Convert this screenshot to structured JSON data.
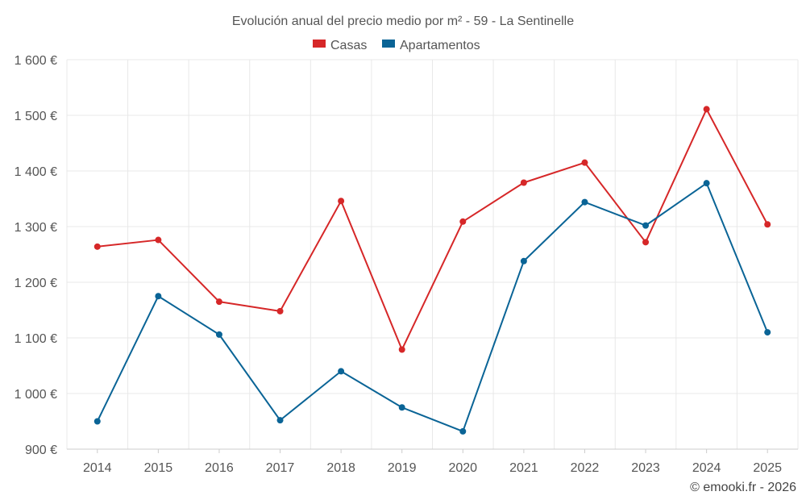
{
  "chart_data": {
    "type": "line",
    "title": "Evolución anual del precio medio por m² - 59 - La Sentinelle",
    "categories": [
      "2014",
      "2015",
      "2016",
      "2017",
      "2018",
      "2019",
      "2020",
      "2021",
      "2022",
      "2023",
      "2024",
      "2025"
    ],
    "series": [
      {
        "name": "Casas",
        "color": "#d62728",
        "values": [
          1264,
          1276,
          1165,
          1148,
          1346,
          1079,
          1309,
          1379,
          1415,
          1272,
          1511,
          1304
        ]
      },
      {
        "name": "Apartamentos",
        "color": "#0a6496",
        "values": [
          950,
          1175,
          1106,
          952,
          1040,
          975,
          932,
          1238,
          1344,
          1302,
          1378,
          1110
        ]
      }
    ],
    "yticks": [
      900,
      1000,
      1100,
      1200,
      1300,
      1400,
      1500,
      1600
    ],
    "ytick_labels": [
      "900 €",
      "1 000 €",
      "1 100 €",
      "1 200 €",
      "1 300 €",
      "1 400 €",
      "1 500 €",
      "1 600 €"
    ],
    "ylim": [
      900,
      1600
    ],
    "xlabel": "",
    "ylabel": "",
    "grid": true,
    "legend_position": "top-center"
  },
  "credit": "© emooki.fr - 2026"
}
